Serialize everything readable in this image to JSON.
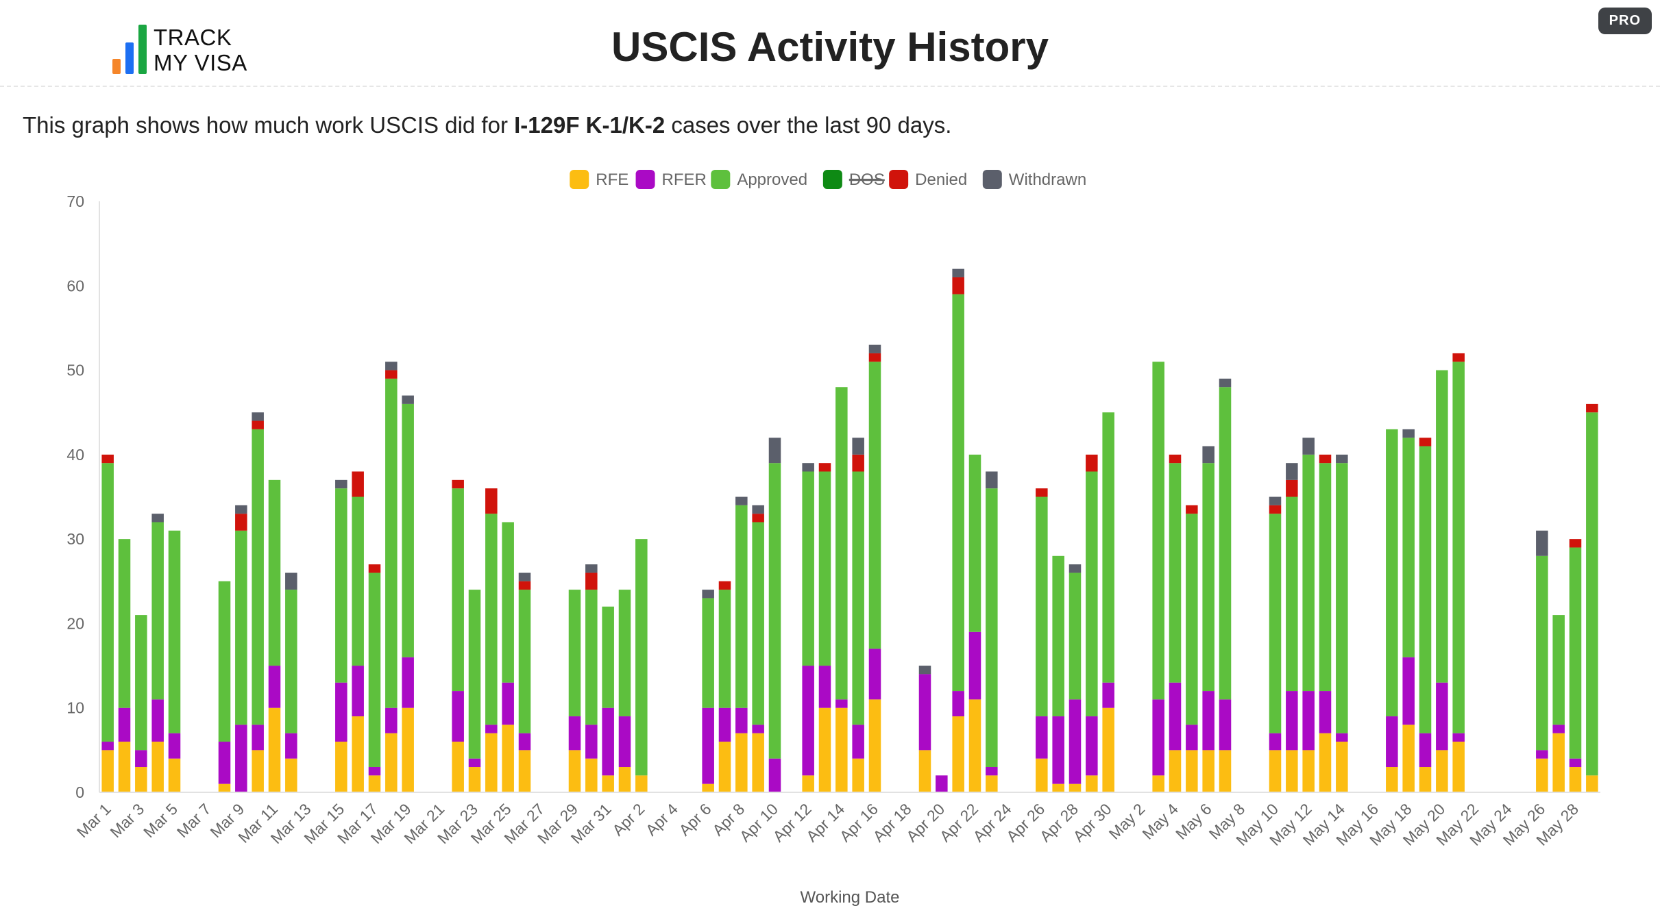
{
  "header": {
    "logo_line1": "TRACK",
    "logo_line2": "MY VISA",
    "logo_colors": [
      "#f5862a",
      "#1d6ff2",
      "#1aa642"
    ],
    "title": "USCIS Activity History",
    "pro_badge": "PRO"
  },
  "description": {
    "prefix": "This graph shows how much work USCIS did for ",
    "case_type": "I-129F K-1/K-2",
    "suffix": " cases over the last 90 days."
  },
  "chart_data": {
    "type": "bar",
    "stacked": true,
    "xlabel": "Working Date",
    "ylabel": "",
    "ylim": [
      0,
      70
    ],
    "yticks": [
      0,
      10,
      20,
      30,
      40,
      50,
      60,
      70
    ],
    "grid": false,
    "legend_position": "top-center",
    "categories": [
      "Mar 1",
      "Mar 2",
      "Mar 3",
      "Mar 4",
      "Mar 5",
      "Mar 6",
      "Mar 7",
      "Mar 8",
      "Mar 9",
      "Mar 10",
      "Mar 11",
      "Mar 12",
      "Mar 13",
      "Mar 14",
      "Mar 15",
      "Mar 16",
      "Mar 17",
      "Mar 18",
      "Mar 19",
      "Mar 20",
      "Mar 21",
      "Mar 22",
      "Mar 23",
      "Mar 24",
      "Mar 25",
      "Mar 26",
      "Mar 27",
      "Mar 28",
      "Mar 29",
      "Mar 30",
      "Mar 31",
      "Apr 1",
      "Apr 2",
      "Apr 3",
      "Apr 4",
      "Apr 5",
      "Apr 6",
      "Apr 7",
      "Apr 8",
      "Apr 9",
      "Apr 10",
      "Apr 11",
      "Apr 12",
      "Apr 13",
      "Apr 14",
      "Apr 15",
      "Apr 16",
      "Apr 17",
      "Apr 18",
      "Apr 19",
      "Apr 20",
      "Apr 21",
      "Apr 22",
      "Apr 23",
      "Apr 24",
      "Apr 25",
      "Apr 26",
      "Apr 27",
      "Apr 28",
      "Apr 29",
      "Apr 30",
      "May 1",
      "May 2",
      "May 3",
      "May 4",
      "May 5",
      "May 6",
      "May 7",
      "May 8",
      "May 9",
      "May 10",
      "May 11",
      "May 12",
      "May 13",
      "May 14",
      "May 15",
      "May 16",
      "May 17",
      "May 18",
      "May 19",
      "May 20",
      "May 21",
      "May 22",
      "May 23",
      "May 24",
      "May 25",
      "May 26",
      "May 27",
      "May 28",
      "May 29"
    ],
    "tick_labels": [
      "Mar 1",
      "Mar 3",
      "Mar 5",
      "Mar 7",
      "Mar 9",
      "Mar 11",
      "Mar 13",
      "Mar 15",
      "Mar 17",
      "Mar 19",
      "Mar 21",
      "Mar 23",
      "Mar 25",
      "Mar 27",
      "Mar 29",
      "Mar 31",
      "Apr 2",
      "Apr 4",
      "Apr 6",
      "Apr 8",
      "Apr 10",
      "Apr 12",
      "Apr 14",
      "Apr 16",
      "Apr 18",
      "Apr 20",
      "Apr 22",
      "Apr 24",
      "Apr 26",
      "Apr 28",
      "Apr 30",
      "May 2",
      "May 4",
      "May 6",
      "May 8",
      "May 10",
      "May 12",
      "May 14",
      "May 16",
      "May 18",
      "May 20",
      "May 22",
      "May 24",
      "May 26",
      "May 28"
    ],
    "series": [
      {
        "name": "RFE",
        "color": "#fcbd12",
        "values": [
          5,
          6,
          3,
          6,
          4,
          0,
          0,
          1,
          0,
          5,
          10,
          4,
          0,
          0,
          6,
          9,
          2,
          7,
          10,
          0,
          0,
          6,
          3,
          7,
          8,
          5,
          0,
          0,
          5,
          4,
          2,
          3,
          2,
          0,
          0,
          0,
          1,
          6,
          7,
          7,
          0,
          0,
          2,
          10,
          10,
          4,
          11,
          0,
          0,
          5,
          0,
          9,
          11,
          2,
          0,
          0,
          4,
          1,
          1,
          2,
          10,
          0,
          0,
          2,
          5,
          5,
          5,
          5,
          0,
          0,
          5,
          5,
          5,
          7,
          6,
          0,
          0,
          3,
          8,
          3,
          5,
          6,
          0,
          0,
          0,
          0,
          4,
          7,
          3,
          2
        ]
      },
      {
        "name": "RFER",
        "color": "#aa0ac5",
        "values": [
          1,
          4,
          2,
          5,
          3,
          0,
          0,
          5,
          8,
          3,
          5,
          3,
          0,
          0,
          7,
          6,
          1,
          3,
          6,
          0,
          0,
          6,
          1,
          1,
          5,
          2,
          0,
          0,
          4,
          4,
          8,
          6,
          0,
          0,
          0,
          0,
          9,
          4,
          3,
          1,
          4,
          0,
          13,
          5,
          1,
          4,
          6,
          0,
          0,
          9,
          2,
          3,
          8,
          1,
          0,
          0,
          5,
          8,
          10,
          7,
          3,
          0,
          0,
          9,
          8,
          3,
          7,
          6,
          0,
          0,
          2,
          7,
          7,
          5,
          1,
          0,
          0,
          6,
          8,
          4,
          8,
          1,
          0,
          0,
          0,
          0,
          1,
          1,
          1,
          0
        ]
      },
      {
        "name": "Approved",
        "color": "#5ec03d",
        "values": [
          33,
          20,
          16,
          21,
          24,
          0,
          0,
          19,
          23,
          35,
          22,
          17,
          0,
          0,
          23,
          20,
          23,
          39,
          30,
          0,
          0,
          24,
          20,
          25,
          19,
          17,
          0,
          0,
          15,
          16,
          12,
          15,
          28,
          0,
          0,
          0,
          13,
          14,
          24,
          24,
          35,
          0,
          23,
          23,
          37,
          30,
          34,
          0,
          0,
          0,
          0,
          47,
          21,
          33,
          0,
          0,
          26,
          19,
          15,
          29,
          32,
          0,
          0,
          40,
          26,
          25,
          27,
          37,
          0,
          0,
          26,
          23,
          28,
          27,
          32,
          0,
          0,
          34,
          26,
          34,
          37,
          44,
          0,
          0,
          0,
          0,
          23,
          13,
          25,
          43
        ]
      },
      {
        "name": "DOS",
        "color": "#0e8a14",
        "values": [
          0,
          0,
          0,
          0,
          0,
          0,
          0,
          0,
          0,
          0,
          0,
          0,
          0,
          0,
          0,
          0,
          0,
          0,
          0,
          0,
          0,
          0,
          0,
          0,
          0,
          0,
          0,
          0,
          0,
          0,
          0,
          0,
          0,
          0,
          0,
          0,
          0,
          0,
          0,
          0,
          0,
          0,
          0,
          0,
          0,
          0,
          0,
          0,
          0,
          0,
          0,
          0,
          0,
          0,
          0,
          0,
          0,
          0,
          0,
          0,
          0,
          0,
          0,
          0,
          0,
          0,
          0,
          0,
          0,
          0,
          0,
          0,
          0,
          0,
          0,
          0,
          0,
          0,
          0,
          0,
          0,
          0,
          0,
          0,
          0,
          0,
          0,
          0,
          0,
          0
        ]
      },
      {
        "name": "Denied",
        "color": "#d0130b",
        "values": [
          1,
          0,
          0,
          0,
          0,
          0,
          0,
          0,
          2,
          1,
          0,
          0,
          0,
          0,
          0,
          3,
          1,
          1,
          0,
          0,
          0,
          1,
          0,
          3,
          0,
          1,
          0,
          0,
          0,
          2,
          0,
          0,
          0,
          0,
          0,
          0,
          0,
          1,
          0,
          1,
          0,
          0,
          0,
          1,
          0,
          2,
          1,
          0,
          0,
          0,
          0,
          2,
          0,
          0,
          0,
          0,
          1,
          0,
          0,
          2,
          0,
          0,
          0,
          0,
          1,
          1,
          0,
          0,
          0,
          0,
          1,
          2,
          0,
          1,
          0,
          0,
          0,
          0,
          0,
          1,
          0,
          1,
          0,
          0,
          0,
          0,
          0,
          0,
          1,
          1
        ]
      },
      {
        "name": "Withdrawn",
        "color": "#5b5f6b",
        "values": [
          0,
          0,
          0,
          1,
          0,
          0,
          0,
          0,
          1,
          1,
          0,
          2,
          0,
          0,
          1,
          0,
          0,
          1,
          1,
          0,
          0,
          0,
          0,
          0,
          0,
          1,
          0,
          0,
          0,
          1,
          0,
          0,
          0,
          0,
          0,
          0,
          1,
          0,
          1,
          1,
          3,
          0,
          1,
          0,
          0,
          2,
          1,
          0,
          0,
          1,
          0,
          1,
          0,
          2,
          0,
          0,
          0,
          0,
          1,
          0,
          0,
          0,
          0,
          0,
          0,
          0,
          2,
          1,
          0,
          0,
          1,
          2,
          2,
          0,
          1,
          0,
          0,
          0,
          1,
          0,
          0,
          0,
          0,
          0,
          0,
          0,
          3,
          0,
          0,
          0
        ]
      }
    ],
    "struck_legend": [
      "DOS"
    ]
  }
}
